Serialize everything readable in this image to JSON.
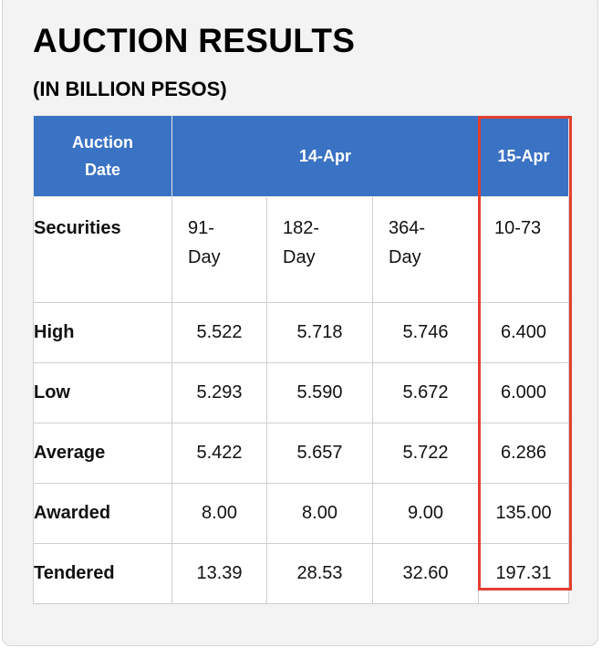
{
  "title": "AUCTION RESULTS",
  "subtitle": "(IN BILLION PESOS)",
  "table": {
    "header": {
      "auction_date_label_1": "Auction",
      "auction_date_label_2": "Date",
      "group_1": "14-Apr",
      "group_2": "15-Apr"
    },
    "securities": {
      "label": "Securities",
      "values": [
        {
          "line1": "91-",
          "line2": "Day"
        },
        {
          "line1": "182-",
          "line2": "Day"
        },
        {
          "line1": "364-",
          "line2": "Day"
        },
        {
          "line1": "10-73",
          "line2": ""
        }
      ]
    },
    "rows": [
      {
        "label": "High",
        "values": [
          "5.522",
          "5.718",
          "5.746",
          "6.400"
        ]
      },
      {
        "label": "Low",
        "values": [
          "5.293",
          "5.590",
          "5.672",
          "6.000"
        ]
      },
      {
        "label": "Average",
        "values": [
          "5.422",
          "5.657",
          "5.722",
          "6.286"
        ]
      },
      {
        "label": "Awarded",
        "values": [
          "8.00",
          "8.00",
          "9.00",
          "135.00"
        ]
      },
      {
        "label": "Tendered",
        "values": [
          "13.39",
          "28.53",
          "32.60",
          "197.31"
        ]
      }
    ]
  },
  "colors": {
    "header_blue": "#3a72c4",
    "highlight_red": "#e43e2f"
  }
}
